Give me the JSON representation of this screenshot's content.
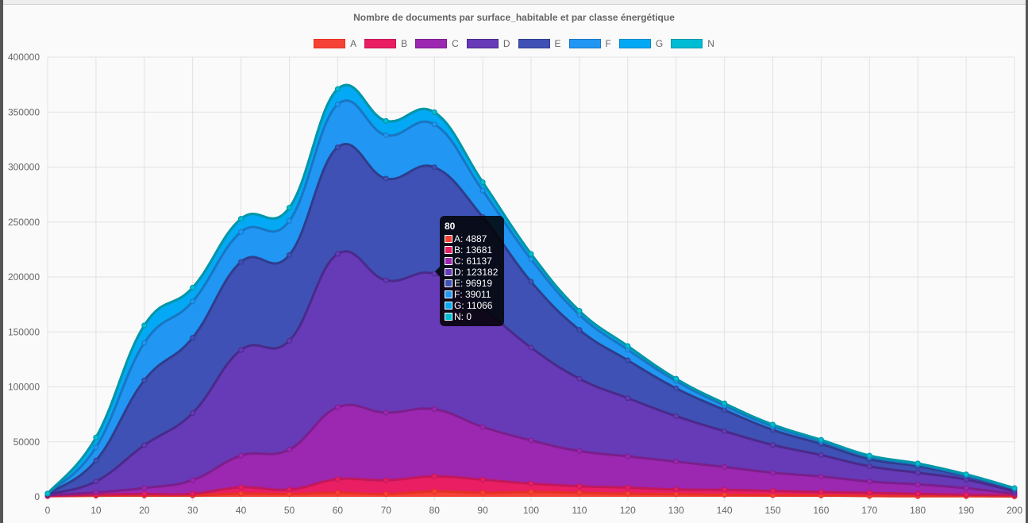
{
  "chart_data": {
    "type": "area",
    "stacked": true,
    "title": "Nombre de documents par surface_habitable et par classe énergétique",
    "xlabel": "",
    "ylabel": "",
    "x": [
      0,
      10,
      20,
      30,
      40,
      50,
      60,
      70,
      80,
      90,
      100,
      110,
      120,
      130,
      140,
      150,
      160,
      170,
      180,
      190,
      200
    ],
    "ylim": [
      0,
      400000
    ],
    "yticks": [
      "0",
      "50000",
      "100000",
      "150000",
      "200000",
      "250000",
      "300000",
      "350000",
      "400000"
    ],
    "grid": true,
    "legend_position": "top",
    "series": [
      {
        "name": "A",
        "color": "#F44336",
        "border": "#e53124",
        "values": [
          500,
          1000,
          1200,
          1200,
          2900,
          2500,
          3600,
          2500,
          4887,
          3600,
          4300,
          3600,
          2700,
          2400,
          1900,
          1400,
          1200,
          700,
          500,
          500,
          300
        ]
      },
      {
        "name": "B",
        "color": "#E91E63",
        "border": "#c2185b",
        "values": [
          300,
          1000,
          1300,
          1500,
          5800,
          4000,
          12400,
          12500,
          13681,
          12000,
          7700,
          6000,
          5700,
          4300,
          4400,
          3900,
          3100,
          2900,
          2200,
          1400,
          1200
        ]
      },
      {
        "name": "C",
        "color": "#9C27B0",
        "border": "#7b1f8c",
        "values": [
          800,
          2000,
          5500,
          12500,
          28800,
          36500,
          65500,
          61500,
          61137,
          48000,
          39300,
          32000,
          28400,
          25300,
          20900,
          16600,
          14200,
          10300,
          8600,
          6000,
          1200
        ]
      },
      {
        "name": "D",
        "color": "#673AB7",
        "border": "#4a2a8a",
        "values": [
          700,
          10000,
          39000,
          61000,
          96100,
          99000,
          139500,
          120500,
          123182,
          108000,
          84400,
          65800,
          53000,
          41400,
          32500,
          25300,
          19500,
          13800,
          10600,
          7800,
          2100
        ]
      },
      {
        "name": "E",
        "color": "#3F51B5",
        "border": "#2f3d8c",
        "values": [
          400,
          19000,
          59000,
          68500,
          80100,
          78000,
          97000,
          92500,
          96919,
          83000,
          60000,
          44500,
          34400,
          25300,
          19300,
          13700,
          10100,
          6500,
          6000,
          3100,
          2200
        ]
      },
      {
        "name": "F",
        "color": "#2196F3",
        "border": "#1976c2",
        "values": [
          200,
          12000,
          34000,
          33000,
          27300,
          31000,
          39000,
          39500,
          39011,
          24000,
          20400,
          13700,
          9600,
          6700,
          4000,
          3100,
          2400,
          2100,
          1500,
          700,
          500
        ]
      },
      {
        "name": "G",
        "color": "#03A9F4",
        "border": "#0288c7",
        "values": [
          100,
          9000,
          16000,
          12600,
          12000,
          12000,
          14000,
          13000,
          11066,
          7600,
          4900,
          3600,
          3400,
          2000,
          2000,
          1700,
          1300,
          1200,
          900,
          900,
          400
        ]
      },
      {
        "name": "N",
        "color": "#00BCD4",
        "border": "#0097a7",
        "values": [
          0,
          0,
          0,
          0,
          0,
          0,
          0,
          0,
          0,
          0,
          0,
          0,
          0,
          0,
          0,
          0,
          0,
          0,
          0,
          0,
          0
        ]
      }
    ],
    "tooltip": {
      "title": "80",
      "rows": [
        "A: 4887",
        "B: 13681",
        "C: 61137",
        "D: 123182",
        "E: 96919",
        "F: 39011",
        "G: 11066",
        "N: 0"
      ]
    }
  }
}
